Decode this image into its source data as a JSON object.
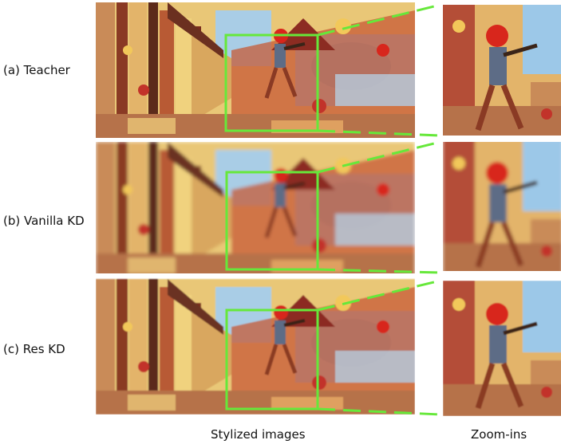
{
  "rows": [
    {
      "label": "(a) Teacher"
    },
    {
      "label": "(b) Vanilla KD"
    },
    {
      "label": "(c) Res KD"
    }
  ],
  "captions": {
    "stylized": "Stylized images",
    "zoom": "Zoom-ins"
  },
  "colors": {
    "highlight_box": "#66e83a",
    "sky_blue": "#9cc8e8",
    "warm_yellow": "#f2c85a",
    "brick_red": "#a8342a",
    "dark_brown": "#3a2418",
    "figure_red": "#d8261c"
  }
}
